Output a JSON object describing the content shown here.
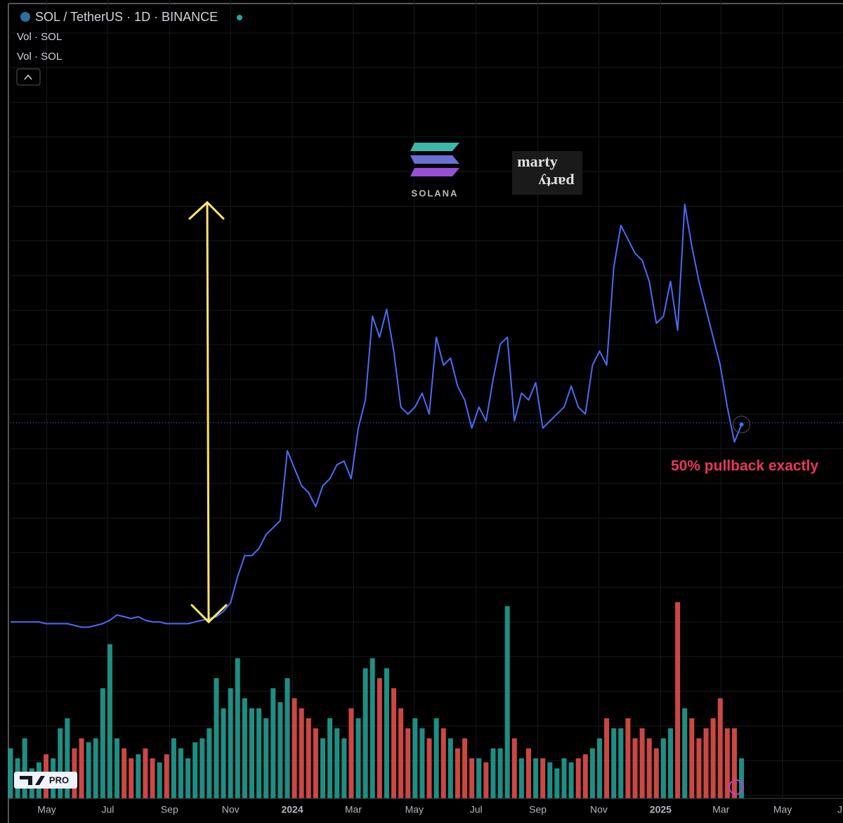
{
  "chart_data": {
    "type": "line",
    "title": "SOL / TetherUS · 1D · BINANCE",
    "indicator_labels": [
      "Vol · SOL",
      "Vol · SOL"
    ],
    "logos": [
      "SOLANA",
      "marty",
      "party"
    ],
    "annotation": "50% pullback exactly",
    "badge": "PRO",
    "grid": true,
    "color": "#4a6cf7",
    "xlim": [
      0,
      117.3
    ],
    "xticks": [
      {
        "value": 5.1,
        "label": "May"
      },
      {
        "value": 13.7,
        "label": "Jul"
      },
      {
        "value": 22.4,
        "label": "Sep"
      },
      {
        "value": 31.0,
        "label": "Nov"
      },
      {
        "value": 39.7,
        "label": "2024"
      },
      {
        "value": 48.3,
        "label": "Mar"
      },
      {
        "value": 56.9,
        "label": "May"
      },
      {
        "value": 65.6,
        "label": "Jul"
      },
      {
        "value": 74.3,
        "label": "Sep"
      },
      {
        "value": 82.9,
        "label": "Nov"
      },
      {
        "value": 91.6,
        "label": "2025"
      },
      {
        "value": 100.1,
        "label": "Mar"
      },
      {
        "value": 108.8,
        "label": "May"
      },
      {
        "value": 117.4,
        "label": "Jul"
      }
    ],
    "ylim": [
      -80,
      377
    ],
    "price_line": 135,
    "values": [
      21,
      21,
      21,
      21,
      21,
      20,
      20,
      20,
      20,
      19,
      18,
      18,
      19,
      20,
      22,
      25,
      24,
      23,
      24,
      22,
      21,
      21,
      20,
      20,
      20,
      20,
      21,
      22,
      23,
      24,
      27,
      32,
      47,
      59,
      59,
      63,
      71,
      75,
      79,
      119,
      109,
      99,
      95,
      87,
      99,
      103,
      111,
      113,
      103,
      132,
      148,
      196,
      184,
      200,
      176,
      144,
      140,
      144,
      152,
      140,
      184,
      168,
      172,
      156,
      148,
      132,
      144,
      136,
      160,
      180,
      184,
      136,
      152,
      148,
      158,
      132,
      136,
      140,
      144,
      156,
      144,
      140,
      168,
      176,
      168,
      224,
      248,
      240,
      232,
      228,
      216,
      192,
      196,
      216,
      188,
      260,
      236,
      216,
      200,
      184,
      168,
      144,
      124,
      134
    ],
    "volume": {
      "ylim": [
        0,
        100
      ],
      "up_color": "#26a69a",
      "down_color": "#ef5350",
      "values": [
        25,
        20,
        30,
        15,
        18,
        22,
        20,
        35,
        40,
        25,
        30,
        28,
        30,
        55,
        77,
        30,
        25,
        20,
        22,
        25,
        20,
        18,
        22,
        30,
        25,
        20,
        28,
        30,
        35,
        60,
        45,
        55,
        70,
        50,
        45,
        45,
        40,
        55,
        48,
        60,
        50,
        45,
        40,
        35,
        30,
        40,
        35,
        30,
        45,
        40,
        65,
        70,
        60,
        65,
        55,
        45,
        35,
        40,
        35,
        30,
        40,
        35,
        30,
        25,
        30,
        20,
        20,
        18,
        25,
        25,
        96,
        30,
        20,
        25,
        20,
        20,
        18,
        15,
        20,
        18,
        20,
        22,
        25,
        30,
        40,
        35,
        35,
        40,
        30,
        35,
        30,
        25,
        30,
        35,
        98,
        45,
        40,
        30,
        35,
        40,
        50,
        35,
        35,
        20
      ]
    }
  }
}
